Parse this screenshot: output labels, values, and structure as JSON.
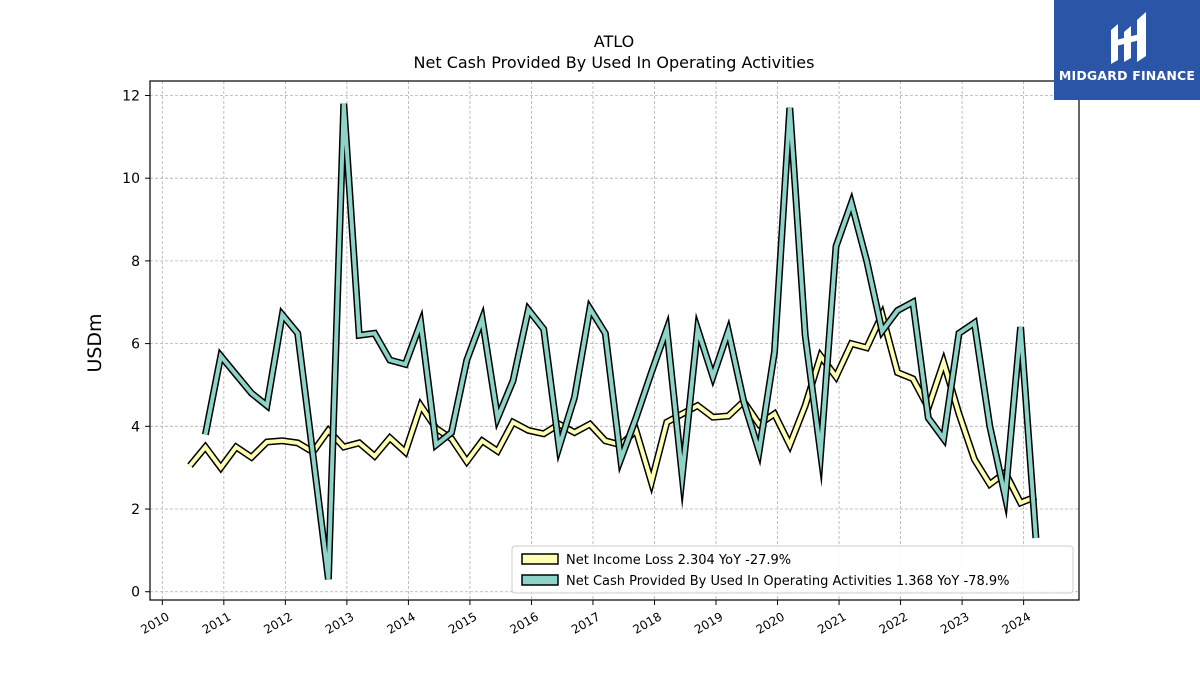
{
  "brand": {
    "name": "MIDGARD FINANCE",
    "color": "#2b56a8"
  },
  "chart_data": {
    "type": "line",
    "title": "ATLO",
    "subtitle": "Net Cash Provided By Used In Operating Activities",
    "ylabel": "USDm",
    "xlabel": "",
    "xlim": [
      2009.8,
      2024.9
    ],
    "ylim": [
      -0.2,
      12.35
    ],
    "grid": true,
    "legend_position": "lower-right",
    "x_ticks": [
      2010,
      2011,
      2012,
      2013,
      2014,
      2015,
      2016,
      2017,
      2018,
      2019,
      2020,
      2021,
      2022,
      2023,
      2024
    ],
    "y_ticks": [
      0,
      2,
      4,
      6,
      8,
      10,
      12
    ],
    "series": [
      {
        "name": "Net Income Loss",
        "legend_label": "Net Income Loss  2.304 YoY -27.9%",
        "color": "#ffffb3",
        "x": [
          2010.45,
          2010.7,
          2010.95,
          2011.2,
          2011.45,
          2011.7,
          2011.95,
          2012.2,
          2012.45,
          2012.7,
          2012.95,
          2013.2,
          2013.45,
          2013.7,
          2013.95,
          2014.2,
          2014.45,
          2014.7,
          2014.95,
          2015.2,
          2015.45,
          2015.7,
          2015.95,
          2016.2,
          2016.45,
          2016.7,
          2016.95,
          2017.2,
          2017.45,
          2017.7,
          2017.95,
          2018.2,
          2018.45,
          2018.7,
          2018.95,
          2019.2,
          2019.45,
          2019.7,
          2019.95,
          2020.2,
          2020.45,
          2020.7,
          2020.95,
          2021.2,
          2021.45,
          2021.7,
          2021.95,
          2022.2,
          2022.45,
          2022.7,
          2022.95,
          2023.2,
          2023.45,
          2023.7,
          2023.95,
          2024.2
        ],
        "values": [
          3.05,
          3.5,
          3.0,
          3.5,
          3.25,
          3.62,
          3.65,
          3.6,
          3.38,
          3.9,
          3.5,
          3.6,
          3.28,
          3.72,
          3.38,
          4.5,
          3.95,
          3.7,
          3.15,
          3.65,
          3.4,
          4.1,
          3.9,
          3.82,
          4.05,
          3.85,
          4.05,
          3.65,
          3.55,
          3.9,
          2.65,
          4.1,
          4.3,
          4.5,
          4.22,
          4.25,
          4.6,
          4.05,
          4.3,
          3.55,
          4.5,
          5.7,
          5.2,
          6.0,
          5.9,
          6.7,
          5.3,
          5.15,
          4.45,
          5.55,
          4.3,
          3.2,
          2.6,
          2.88,
          2.15,
          2.3
        ]
      },
      {
        "name": "Net Cash Provided By Used In Operating Activities",
        "legend_label": "Net Cash Provided By Used In Operating Activities  1.368 YoY -78.9%",
        "color": "#8dd3c7",
        "x": [
          2010.7,
          2010.95,
          2011.2,
          2011.45,
          2011.7,
          2011.95,
          2012.2,
          2012.45,
          2012.7,
          2012.95,
          2013.2,
          2013.45,
          2013.7,
          2013.95,
          2014.2,
          2014.45,
          2014.7,
          2014.95,
          2015.2,
          2015.45,
          2015.7,
          2015.95,
          2016.2,
          2016.45,
          2016.7,
          2016.95,
          2017.2,
          2017.45,
          2017.7,
          2017.95,
          2018.2,
          2018.45,
          2018.7,
          2018.95,
          2019.2,
          2019.45,
          2019.7,
          2019.95,
          2020.2,
          2020.45,
          2020.7,
          2020.95,
          2021.2,
          2021.45,
          2021.7,
          2021.95,
          2022.2,
          2022.45,
          2022.7,
          2022.95,
          2023.2,
          2023.45,
          2023.7,
          2023.95,
          2024.2
        ],
        "values": [
          3.8,
          5.7,
          5.25,
          4.8,
          4.5,
          6.7,
          6.25,
          3.3,
          0.3,
          11.8,
          6.2,
          6.25,
          5.6,
          5.5,
          6.5,
          3.55,
          3.85,
          5.6,
          6.6,
          4.2,
          5.1,
          6.82,
          6.35,
          3.5,
          4.7,
          6.85,
          6.25,
          3.2,
          4.2,
          5.3,
          6.35,
          2.8,
          6.35,
          5.2,
          6.3,
          4.6,
          3.4,
          5.8,
          11.7,
          6.2,
          3.35,
          8.35,
          9.4,
          8.0,
          6.3,
          6.8,
          7.0,
          4.2,
          3.7,
          6.25,
          6.5,
          4.0,
          2.3,
          6.4,
          1.3
        ]
      }
    ]
  }
}
